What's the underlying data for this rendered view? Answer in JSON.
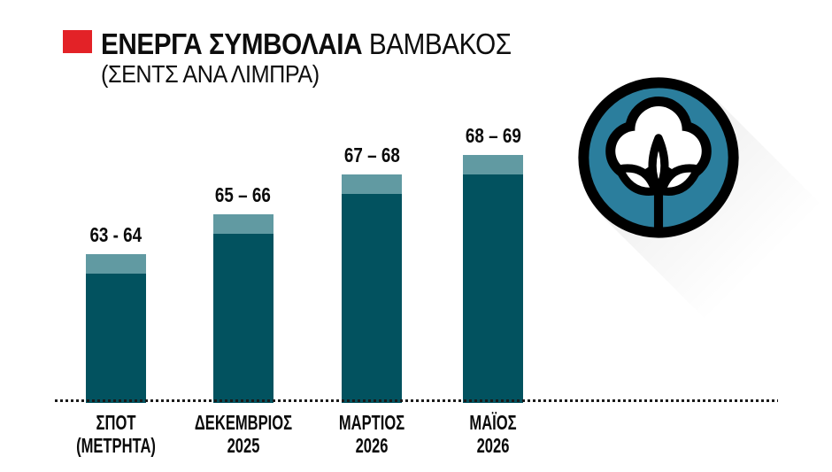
{
  "page": {
    "background": "#ffffff"
  },
  "header": {
    "bullet_color": "#e32227",
    "title_strong": "ΕΝΕΡΓΑ ΣΥΜΒΟΛΑΙΑ",
    "title_light": "ΒΑΜΒΑΚΟΣ",
    "subtitle": "(ΣΕΝΤΣ ΑΝΑ ΛΙΜΠΡΑ)"
  },
  "icon": {
    "name": "cotton-boll-icon",
    "circle_fill": "#2b7e9d",
    "outline_color": "#000000",
    "boll_fill": "#ffffff"
  },
  "chart_data": {
    "type": "bar",
    "subtype": "range-columns-with-cap",
    "title": "ΕΝΕΡΓΑ ΣΥΜΒΟΛΑΙΑ ΒΑΜΒΑΚΟΣ",
    "units_label": "ΣΕΝΤΣ ΑΝΑ ΛΙΜΠΡΑ",
    "categories": [
      "ΣΠΟΤ (ΜΕΤΡΗΤΑ)",
      "ΔΕΚΕΜΒΡΙΟΣ 2025",
      "ΜΑΡΤΙΟΣ 2026",
      "ΜΑΪΟΣ 2026"
    ],
    "bars": [
      {
        "line1": "ΣΠΟΤ",
        "line2": "(ΜΕΤΡΗΤΑ)",
        "low": 63,
        "high": 64,
        "label": "63 - 64"
      },
      {
        "line1": "ΔΕΚΕΜΒΡΙΟΣ",
        "line2": "2025",
        "low": 65,
        "high": 66,
        "label": "65 – 66"
      },
      {
        "line1": "ΜΑΡΤΙΟΣ",
        "line2": "2026",
        "low": 67,
        "high": 68,
        "label": "67 – 68"
      },
      {
        "line1": "ΜΑΪΟΣ",
        "line2": "2026",
        "low": 68,
        "high": 69,
        "label": "68 – 69"
      }
    ],
    "ylim": [
      56.5,
      70
    ],
    "colors": {
      "body": "#02525f",
      "cap": "#619aa2"
    },
    "grid": false,
    "legend": "none",
    "baseline_style": "dashed"
  }
}
